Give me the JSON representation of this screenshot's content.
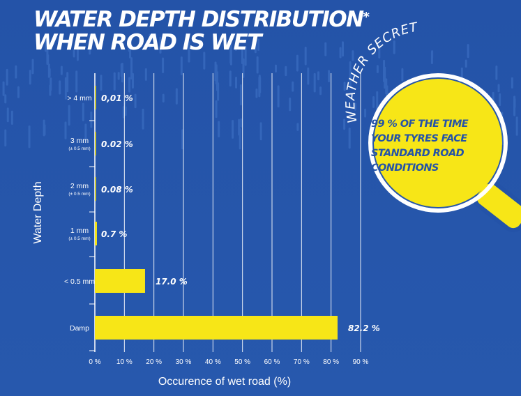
{
  "title": {
    "line1": "WATER DEPTH DISTRIBUTION",
    "mark": "*",
    "line2": "WHEN ROAD IS WET"
  },
  "callout": {
    "arc_text": "WEATHER SECRET",
    "lines": [
      "99 % OF THE TIME",
      "YOUR TYRES FACE",
      "STANDARD ROAD",
      "CONDITIONS"
    ]
  },
  "colors": {
    "background": "#2453a8",
    "bar": "#f7e617",
    "lens": "#f7e617",
    "text": "#ffffff"
  },
  "chart_data": {
    "type": "bar",
    "orientation": "horizontal",
    "ylabel": "Water Depth",
    "xlabel": "Occurence of wet road (%)",
    "xlim": [
      0,
      90
    ],
    "xticks": [
      "0 %",
      "10 %",
      "20 %",
      "30 %",
      "40 %",
      "50 %",
      "60 %",
      "70 %",
      "80 %",
      "90 %"
    ],
    "grid": "vertical",
    "categories": [
      {
        "label": "> 4 mm",
        "sublabel": "",
        "value": 0.01,
        "value_label": "0,01 %"
      },
      {
        "label": "3 mm",
        "sublabel": "(± 0.5 mm)",
        "value": 0.02,
        "value_label": "0.02 %"
      },
      {
        "label": "2 mm",
        "sublabel": "(± 0.5 mm)",
        "value": 0.08,
        "value_label": "0.08 %"
      },
      {
        "label": "1 mm",
        "sublabel": "(± 0.5 mm)",
        "value": 0.7,
        "value_label": "0.7 %"
      },
      {
        "label": "< 0.5 mm",
        "sublabel": "",
        "value": 17.0,
        "value_label": "17.0 %"
      },
      {
        "label": "Damp",
        "sublabel": "",
        "value": 82.2,
        "value_label": "82.2 %"
      }
    ]
  }
}
